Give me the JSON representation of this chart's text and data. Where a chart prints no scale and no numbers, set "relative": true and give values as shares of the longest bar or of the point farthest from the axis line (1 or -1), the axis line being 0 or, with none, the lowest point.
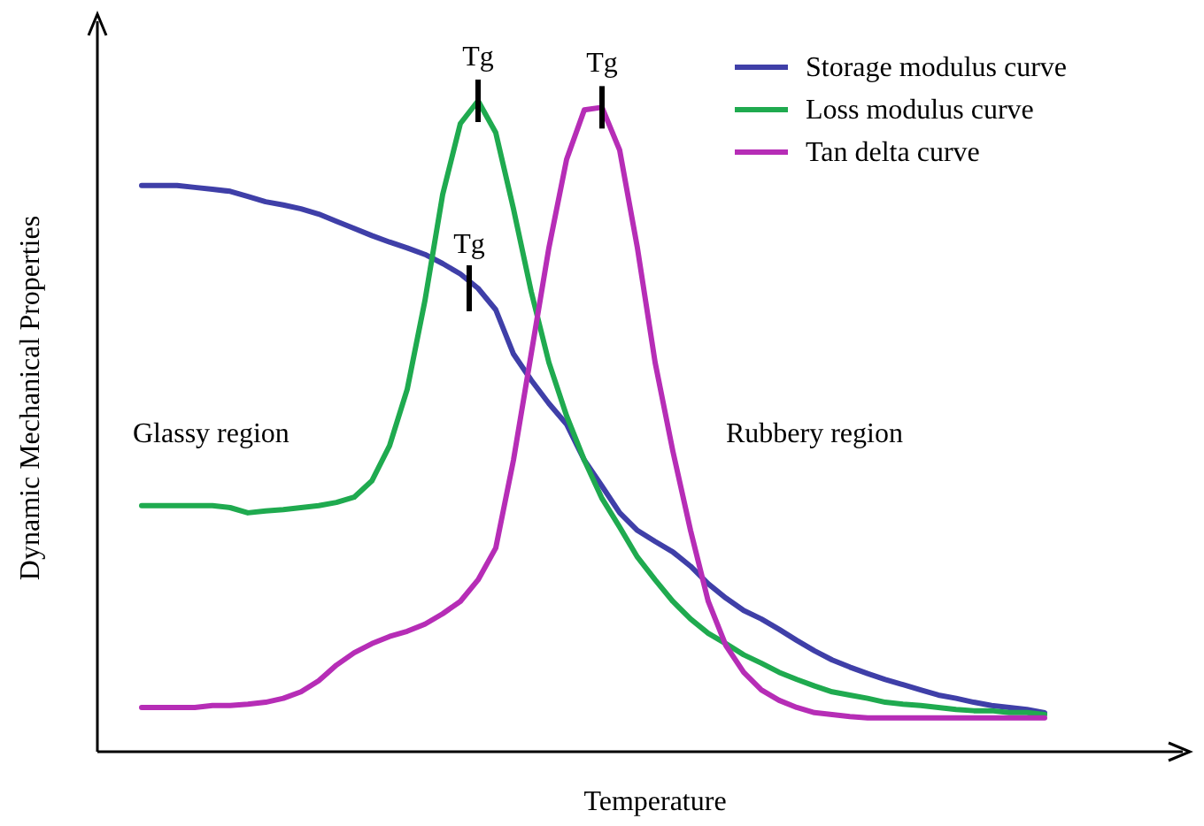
{
  "chart_data": {
    "type": "line",
    "relative": true,
    "xlabel": "Temperature",
    "ylabel": "Dynamic Mechanical Properties",
    "legend": "top right",
    "marker": "none",
    "line_style": "solid",
    "categories": [
      null,
      null,
      null,
      null,
      null,
      null,
      null,
      null,
      null,
      null,
      null,
      null,
      null,
      null,
      null,
      null,
      null,
      null,
      null,
      null,
      null,
      null,
      null,
      null,
      null,
      null,
      null,
      null,
      null,
      null,
      null,
      null,
      null,
      null,
      null,
      null,
      null,
      null,
      null,
      null,
      null,
      null,
      null,
      null,
      null,
      null,
      null,
      null,
      null,
      null,
      null,
      null
    ],
    "series": [
      {
        "name": "Storage modulus curve",
        "color": "#3f3fa8",
        "values": [
          0.87,
          0.87,
          0.87,
          0.867,
          0.864,
          0.861,
          0.853,
          0.845,
          0.84,
          0.834,
          0.826,
          0.815,
          0.804,
          0.793,
          0.783,
          0.774,
          0.764,
          0.75,
          0.734,
          0.712,
          0.679,
          0.611,
          0.571,
          0.535,
          0.503,
          0.448,
          0.408,
          0.367,
          0.34,
          0.323,
          0.307,
          0.285,
          0.258,
          0.236,
          0.217,
          0.204,
          0.188,
          0.171,
          0.155,
          0.141,
          0.13,
          0.12,
          0.111,
          0.103,
          0.095,
          0.087,
          0.082,
          0.076,
          0.071,
          0.068,
          0.065,
          0.06
        ]
      },
      {
        "name": "Loss modulus curve",
        "color": "#1faa4f",
        "values": [
          0.378,
          0.378,
          0.378,
          0.378,
          0.378,
          0.375,
          0.367,
          0.37,
          0.372,
          0.375,
          0.378,
          0.383,
          0.391,
          0.416,
          0.47,
          0.557,
          0.693,
          0.856,
          0.965,
          1.0,
          0.951,
          0.834,
          0.707,
          0.598,
          0.516,
          0.448,
          0.389,
          0.345,
          0.299,
          0.264,
          0.231,
          0.204,
          0.182,
          0.166,
          0.149,
          0.136,
          0.122,
          0.111,
          0.101,
          0.092,
          0.087,
          0.082,
          0.076,
          0.073,
          0.071,
          0.068,
          0.065,
          0.063,
          0.063,
          0.06,
          0.06,
          0.057
        ]
      },
      {
        "name": "Tan delta curve",
        "color": "#b62db6",
        "values": [
          0.068,
          0.068,
          0.068,
          0.068,
          0.071,
          0.071,
          0.073,
          0.076,
          0.082,
          0.092,
          0.109,
          0.133,
          0.152,
          0.166,
          0.177,
          0.185,
          0.196,
          0.212,
          0.231,
          0.264,
          0.313,
          0.448,
          0.611,
          0.774,
          0.91,
          0.986,
          0.99,
          0.924,
          0.774,
          0.598,
          0.462,
          0.34,
          0.231,
          0.163,
          0.122,
          0.095,
          0.079,
          0.068,
          0.06,
          0.057,
          0.054,
          0.052,
          0.052,
          0.052,
          0.052,
          0.052,
          0.052,
          0.052,
          0.052,
          0.052,
          0.052,
          0.052
        ]
      }
    ],
    "annotations": [
      "Tg",
      "Tg",
      "Tg",
      "Glassy region",
      "Rubbery region"
    ]
  }
}
